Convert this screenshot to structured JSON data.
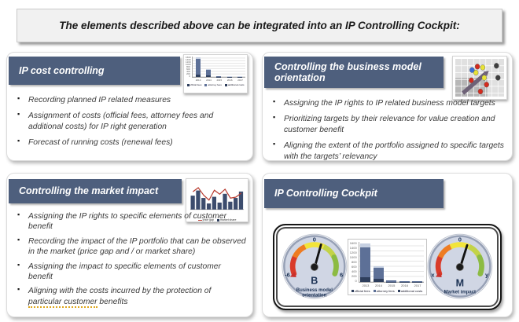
{
  "header": {
    "title": "The elements described above can be integrated into an IP Controlling Cockpit:"
  },
  "colors": {
    "title_bar": "#4e5f7d",
    "title_text": "#ffffff",
    "body_text": "#3a3a3a",
    "gauge_navy": "#1c3254",
    "bar_dark": "#2e3e5c",
    "bar_mid": "#5d7097",
    "bar_light": "#c6d0e2",
    "line_red": "#b83a2e",
    "underline_orange": "#dda61b"
  },
  "panels": {
    "ip_cost": {
      "title": "IP cost controlling",
      "icon": "stacked-bar-chart-thumbnail",
      "bullets": [
        "Recording planned IP related measures",
        "Assignment of costs (official fees, attorney fees and additional costs) for IP right generation",
        "Forecast of running costs (renewal fees)"
      ]
    },
    "business_model": {
      "title": "Controlling the business model orientation",
      "icon": "portfolio-matrix-thumbnail",
      "bullets": [
        "Assigning the IP rights to IP related business model targets",
        "Prioritizing targets by their relevance for value creation and customer benefit",
        "Aligning the extent of the portfolio assigned to specific targets with the targets’ relevancy"
      ]
    },
    "market_impact": {
      "title": "Controlling the market impact",
      "icon": "bar-line-chart-thumbnail",
      "bullets": [
        "Assigning the IP rights to specific elements of customer benefit",
        "Recording the impact of the IP portfolio that can be observed in the market (price gap and / or market share)",
        "Assigning the impact to specific elements of customer benefit",
        {
          "pre": "Aligning with the costs incurred by the protection of ",
          "underline": "particular customer",
          "post": " benefits"
        }
      ]
    },
    "cockpit": {
      "title": "IP Controlling Cockpit"
    }
  },
  "gauges": [
    {
      "letter": "B",
      "name_line1": "Business model",
      "name_line2": "orientation",
      "top_label": "0",
      "left_label": "-6",
      "right_label": "6"
    },
    {
      "letter": "M",
      "name_line1": "Market impact",
      "name_line2": "",
      "top_label": "0",
      "left_label": "x",
      "right_label": "y"
    }
  ],
  "chart_data": [
    {
      "id": "cockpit_cost",
      "type": "stacked-bar",
      "title": "",
      "categories": [
        "2013",
        "2014",
        "2015",
        "2016",
        "2017"
      ],
      "series": [
        {
          "name": "official fees",
          "color": "#2e3e5c",
          "values": [
            200,
            130,
            15,
            10,
            10
          ]
        },
        {
          "name": "attorney fees",
          "color": "#5d7097",
          "values": [
            1150,
            420,
            35,
            20,
            20
          ]
        },
        {
          "name": "additional costs",
          "color": "#c6d0e2",
          "values": [
            150,
            70,
            10,
            5,
            5
          ]
        }
      ],
      "ylim": [
        0,
        1600
      ],
      "ytick_step": 200,
      "grid": true,
      "legend_position": "bottom"
    },
    {
      "id": "market_impact_icon",
      "type": "bar-line",
      "bars": [
        60,
        82,
        50,
        26,
        55,
        30,
        68,
        34,
        50,
        78
      ],
      "line": [
        72,
        88,
        58,
        38,
        78,
        62,
        82,
        46,
        50,
        66
      ],
      "bar_color": "#3c4c6d",
      "line_color": "#b83a2e",
      "legend": [
        "price gap",
        "market share"
      ]
    },
    {
      "id": "business_model_icon",
      "type": "scatter",
      "points": [
        {
          "x": 29,
          "y": 9,
          "color": "#d42a1d"
        },
        {
          "x": 21,
          "y": 25,
          "color": "#d42a1d"
        },
        {
          "x": 41,
          "y": 30,
          "color": "#d42a1d"
        },
        {
          "x": 33,
          "y": 38,
          "color": "#d42a1d"
        },
        {
          "x": 36,
          "y": 10,
          "color": "#e8e337"
        },
        {
          "x": 27,
          "y": 16,
          "color": "#e8e337"
        },
        {
          "x": 38,
          "y": 22,
          "color": "#e8e337"
        },
        {
          "x": 22,
          "y": 13,
          "color": "#3a6fd8"
        },
        {
          "x": 54,
          "y": 8,
          "color": "#3f3f3f"
        },
        {
          "x": 56,
          "y": 22,
          "color": "#3f3f3f"
        }
      ],
      "arrow": {
        "from": [
          10,
          40
        ],
        "to": [
          44,
          14
        ]
      }
    }
  ]
}
